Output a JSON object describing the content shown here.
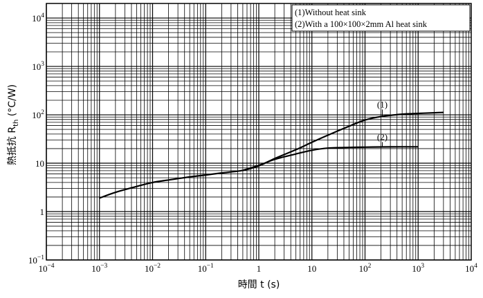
{
  "chart_data": {
    "type": "line",
    "xlabel": "時間 t (s)",
    "ylabel": "熱抵抗 R_th (°C/W)",
    "xscale": "log",
    "yscale": "log",
    "xlim": [
      0.0001,
      10000
    ],
    "ylim": [
      0.1,
      20000
    ],
    "grid": true,
    "legend_position": "top-right",
    "x_ticks": [
      {
        "value": 0.0001,
        "base": "10",
        "exp": "−4"
      },
      {
        "value": 0.001,
        "base": "10",
        "exp": "−3"
      },
      {
        "value": 0.01,
        "base": "10",
        "exp": "−2"
      },
      {
        "value": 0.1,
        "base": "10",
        "exp": "−1"
      },
      {
        "value": 1,
        "base": "1",
        "exp": ""
      },
      {
        "value": 10,
        "base": "10",
        "exp": ""
      },
      {
        "value": 100,
        "base": "10",
        "exp": "2"
      },
      {
        "value": 1000,
        "base": "10",
        "exp": "3"
      },
      {
        "value": 10000,
        "base": "10",
        "exp": "4"
      }
    ],
    "y_ticks": [
      {
        "value": 0.1,
        "base": "10",
        "exp": "−1"
      },
      {
        "value": 1,
        "base": "1",
        "exp": ""
      },
      {
        "value": 10,
        "base": "10",
        "exp": ""
      },
      {
        "value": 100,
        "base": "10",
        "exp": "2"
      },
      {
        "value": 1000,
        "base": "10",
        "exp": "3"
      },
      {
        "value": 10000,
        "base": "10",
        "exp": "4"
      }
    ],
    "legend": [
      "(1)Without heat sink",
      "(2)With a 100×100×2mm Al heat sink"
    ],
    "series": [
      {
        "callout": "(1)",
        "callout_at": 100,
        "x": [
          0.001,
          0.002,
          0.005,
          0.01,
          0.02,
          0.05,
          0.1,
          0.2,
          0.5,
          1,
          2,
          5,
          10,
          20,
          50,
          100,
          200,
          500,
          1000,
          2000,
          3000
        ],
        "y": [
          1.9,
          2.5,
          3.3,
          4.0,
          4.5,
          5.2,
          5.7,
          6.3,
          7.1,
          8.8,
          12.5,
          19,
          27,
          38,
          58,
          78,
          92,
          103,
          107,
          110,
          112
        ]
      },
      {
        "callout": "(2)",
        "callout_at": 100,
        "x": [
          0.5,
          1,
          2,
          5,
          10,
          20,
          50,
          100,
          200,
          500,
          1000
        ],
        "y": [
          7.1,
          9.0,
          12.0,
          15.5,
          18.5,
          20.5,
          21.2,
          21.5,
          21.7,
          21.8,
          21.8
        ]
      }
    ]
  }
}
